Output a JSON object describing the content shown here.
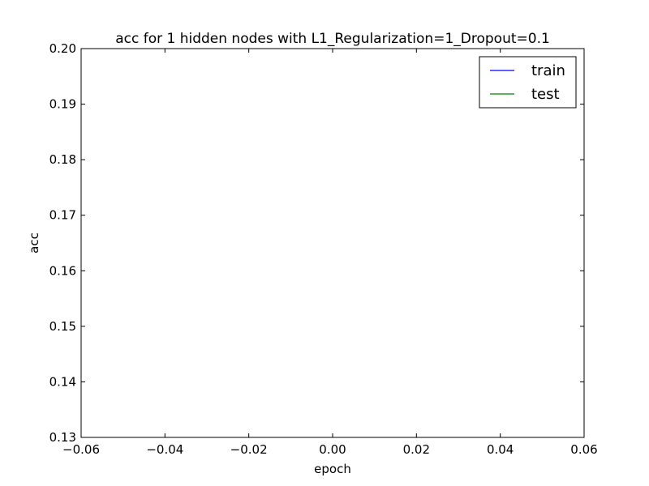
{
  "chart_data": {
    "type": "line",
    "title": "acc for 1 hidden nodes with L1_Regularization=1_Dropout=0.1",
    "xlabel": "epoch",
    "ylabel": "acc",
    "xlim": [
      -0.06,
      0.06
    ],
    "ylim": [
      0.13,
      0.2
    ],
    "x_ticks": [
      "−0.06",
      "−0.04",
      "−0.02",
      "0.00",
      "0.02",
      "0.04",
      "0.06"
    ],
    "y_ticks": [
      "0.13",
      "0.14",
      "0.15",
      "0.16",
      "0.17",
      "0.18",
      "0.19",
      "0.20"
    ],
    "grid": false,
    "legend_position": "top-right",
    "series": [
      {
        "name": "train",
        "color": "#0000ff",
        "x": [],
        "y": []
      },
      {
        "name": "test",
        "color": "#008000",
        "x": [],
        "y": []
      }
    ]
  }
}
